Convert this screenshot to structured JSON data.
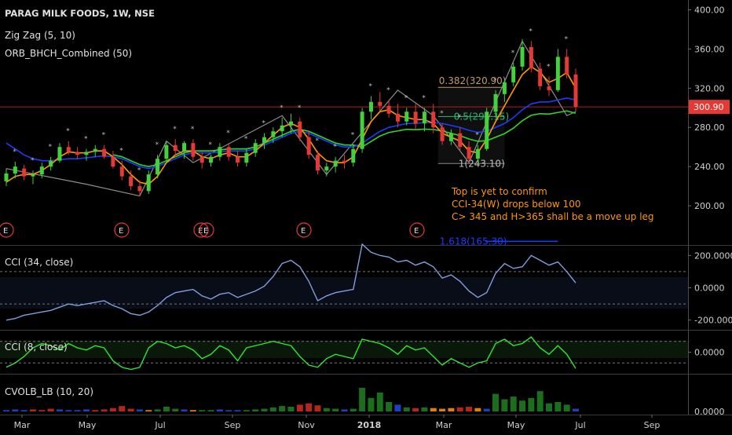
{
  "chart_data": [
    {
      "type": "candlestick",
      "title": "PARAG MILK FOODS, 1W, NSE",
      "overlays": [
        "Zig Zag (5, 10)",
        "ORB_BHCH_Combined (50)"
      ],
      "y_ticks": [
        "400.00",
        "360.00",
        "320.00",
        "280.00",
        "240.00",
        "200.00"
      ],
      "ylim": [
        160,
        410
      ],
      "last_price": "300.90",
      "fib_levels": [
        {
          "label": "0.382(320.90)",
          "value": 320.9
        },
        {
          "label": "0.5(291.15)",
          "value": 291.15
        },
        {
          "label": "1(243.10)",
          "value": 243.1
        },
        {
          "label": "1.618(165.30)",
          "value": 165.3
        }
      ],
      "annotation": [
        "Top is yet to confirm",
        "CCI-34(W) drops below 100",
        "C> 345 and H>365 shall be a move up leg"
      ],
      "candles": [
        [
          225,
          238,
          220,
          233
        ],
        [
          233,
          245,
          228,
          240
        ],
        [
          238,
          242,
          226,
          230
        ],
        [
          230,
          236,
          222,
          232
        ],
        [
          232,
          244,
          228,
          240
        ],
        [
          240,
          250,
          236,
          246
        ],
        [
          246,
          264,
          244,
          260
        ],
        [
          260,
          266,
          252,
          255
        ],
        [
          255,
          260,
          248,
          252
        ],
        [
          252,
          258,
          246,
          255
        ],
        [
          255,
          262,
          250,
          258
        ],
        [
          258,
          262,
          248,
          250
        ],
        [
          250,
          256,
          238,
          240
        ],
        [
          240,
          246,
          226,
          230
        ],
        [
          230,
          236,
          216,
          220
        ],
        [
          220,
          226,
          210,
          215
        ],
        [
          215,
          236,
          212,
          232
        ],
        [
          232,
          252,
          228,
          248
        ],
        [
          248,
          266,
          244,
          262
        ],
        [
          262,
          268,
          250,
          256
        ],
        [
          256,
          266,
          248,
          264
        ],
        [
          264,
          268,
          246,
          250
        ],
        [
          250,
          255,
          238,
          244
        ],
        [
          244,
          252,
          240,
          250
        ],
        [
          250,
          264,
          246,
          260
        ],
        [
          260,
          264,
          246,
          250
        ],
        [
          250,
          256,
          240,
          244
        ],
        [
          244,
          258,
          240,
          254
        ],
        [
          254,
          268,
          250,
          264
        ],
        [
          264,
          274,
          258,
          270
        ],
        [
          270,
          280,
          264,
          276
        ],
        [
          276,
          290,
          270,
          282
        ],
        [
          282,
          294,
          274,
          286
        ],
        [
          286,
          290,
          266,
          270
        ],
        [
          270,
          276,
          248,
          252
        ],
        [
          252,
          256,
          232,
          236
        ],
        [
          236,
          244,
          230,
          240
        ],
        [
          240,
          250,
          234,
          246
        ],
        [
          246,
          252,
          238,
          244
        ],
        [
          244,
          262,
          240,
          258
        ],
        [
          258,
          300,
          254,
          296
        ],
        [
          296,
          312,
          288,
          306
        ],
        [
          306,
          316,
          296,
          302
        ],
        [
          302,
          308,
          290,
          294
        ],
        [
          294,
          304,
          280,
          286
        ],
        [
          286,
          300,
          282,
          296
        ],
        [
          296,
          304,
          278,
          284
        ],
        [
          284,
          300,
          276,
          296
        ],
        [
          296,
          304,
          274,
          280
        ],
        [
          280,
          284,
          262,
          266
        ],
        [
          266,
          278,
          262,
          274
        ],
        [
          274,
          280,
          256,
          260
        ],
        [
          260,
          266,
          244,
          248
        ],
        [
          248,
          262,
          244,
          258
        ],
        [
          258,
          300,
          256,
          296
        ],
        [
          296,
          318,
          290,
          314
        ],
        [
          314,
          330,
          306,
          326
        ],
        [
          326,
          346,
          322,
          342
        ],
        [
          342,
          370,
          338,
          362
        ],
        [
          362,
          368,
          336,
          340
        ],
        [
          340,
          346,
          318,
          322
        ],
        [
          322,
          332,
          312,
          318
        ],
        [
          318,
          360,
          316,
          352
        ],
        [
          352,
          360,
          330,
          334
        ],
        [
          334,
          340,
          296,
          301
        ]
      ],
      "ma_fast": [
        224,
        230,
        232,
        232,
        236,
        242,
        250,
        255,
        254,
        254,
        256,
        256,
        250,
        242,
        232,
        224,
        222,
        230,
        244,
        252,
        256,
        256,
        250,
        248,
        252,
        254,
        250,
        250,
        256,
        264,
        272,
        280,
        284,
        280,
        268,
        254,
        246,
        244,
        244,
        250,
        268,
        286,
        296,
        298,
        292,
        290,
        288,
        288,
        284,
        274,
        270,
        266,
        256,
        254,
        268,
        286,
        302,
        318,
        334,
        342,
        336,
        326,
        330,
        336,
        320
      ],
      "ma_mid": [
        264,
        258,
        252,
        248,
        246,
        246,
        247,
        248,
        248,
        249,
        250,
        251,
        250,
        248,
        244,
        240,
        238,
        240,
        244,
        248,
        252,
        254,
        254,
        254,
        255,
        256,
        256,
        256,
        258,
        262,
        266,
        270,
        274,
        276,
        274,
        270,
        266,
        262,
        260,
        260,
        264,
        270,
        276,
        280,
        282,
        284,
        284,
        285,
        285,
        284,
        282,
        280,
        277,
        275,
        276,
        280,
        284,
        290,
        298,
        304,
        306,
        306,
        308,
        310,
        308
      ],
      "ma_slow": [
        null,
        null,
        null,
        null,
        null,
        null,
        null,
        null,
        null,
        null,
        null,
        null,
        null,
        null,
        null,
        null,
        null,
        null,
        null,
        null,
        null,
        null,
        null,
        null,
        null,
        null,
        null,
        null,
        null,
        null,
        null,
        null,
        null,
        null,
        null,
        null,
        null,
        null,
        null,
        null,
        null,
        null,
        null,
        null,
        null,
        null,
        null,
        null,
        null,
        null,
        null,
        null,
        null,
        null,
        null,
        null,
        null,
        null,
        null,
        null,
        null,
        null,
        null,
        null,
        null
      ]
    },
    {
      "type": "line",
      "title": "CCI (34, close)",
      "y_ticks": [
        "200.0000",
        "0.0000",
        "-200.0000"
      ],
      "ylim": [
        -260,
        260
      ],
      "bands": [
        100,
        -100
      ],
      "values": [
        -200,
        -190,
        -170,
        -160,
        -150,
        -140,
        -120,
        -100,
        -110,
        -100,
        -90,
        -80,
        -110,
        -130,
        -160,
        -170,
        -150,
        -110,
        -60,
        -30,
        -20,
        -10,
        -50,
        -70,
        -40,
        -30,
        -60,
        -40,
        -20,
        10,
        70,
        150,
        170,
        130,
        40,
        -80,
        -50,
        -30,
        -20,
        -10,
        270,
        220,
        200,
        190,
        160,
        170,
        140,
        160,
        130,
        60,
        80,
        40,
        -20,
        -60,
        -30,
        90,
        150,
        120,
        130,
        200,
        170,
        140,
        160,
        100,
        30
      ]
    },
    {
      "type": "line",
      "title": "CCI (8, close)",
      "y_ticks": [
        "0.0000"
      ],
      "ylim": [
        -200,
        200
      ],
      "bands": [
        100,
        -100
      ],
      "values": [
        -140,
        -100,
        -40,
        40,
        80,
        60,
        20,
        80,
        40,
        20,
        60,
        40,
        -80,
        -140,
        -160,
        -140,
        40,
        100,
        80,
        40,
        60,
        20,
        -60,
        -20,
        60,
        20,
        -80,
        40,
        60,
        80,
        100,
        80,
        60,
        -40,
        -120,
        -140,
        -60,
        -20,
        -40,
        -60,
        120,
        100,
        80,
        40,
        -20,
        60,
        20,
        40,
        -40,
        -120,
        -60,
        -100,
        -140,
        -100,
        -80,
        80,
        120,
        60,
        80,
        140,
        40,
        -20,
        60,
        -20,
        -150
      ]
    },
    {
      "type": "bar",
      "title": "CVOLB_LB (10, 20)",
      "y_ticks": [
        "0.0000"
      ],
      "ylim": [
        0,
        50
      ],
      "values": [
        2,
        3,
        2,
        3,
        2,
        4,
        3,
        2,
        2,
        3,
        2,
        3,
        5,
        8,
        4,
        3,
        2,
        3,
        7,
        4,
        3,
        2,
        2,
        2,
        3,
        2,
        2,
        2,
        3,
        4,
        6,
        8,
        7,
        10,
        12,
        9,
        5,
        4,
        3,
        4,
        35,
        20,
        28,
        14,
        10,
        6,
        5,
        6,
        5,
        4,
        5,
        6,
        7,
        5,
        4,
        26,
        18,
        22,
        16,
        20,
        30,
        12,
        14,
        10,
        4
      ],
      "colors": [
        "#1e3fbf",
        "#1e3fbf",
        "#1e3fbf",
        "#b3261e",
        "#b3261e",
        "#b3261e",
        "#1e3fbf",
        "#1e3fbf",
        "#1e3fbf",
        "#1e3fbf",
        "#b3261e",
        "#b3261e",
        "#b3261e",
        "#b3261e",
        "#b3261e",
        "#1e3fbf",
        "#e07b1a",
        "#1b6e1b",
        "#1b6e1b",
        "#1b6e1b",
        "#1e3fbf",
        "#e07b1a",
        "#1b6e1b",
        "#1b6e1b",
        "#1e3fbf",
        "#1e3fbf",
        "#1e3fbf",
        "#1b6e1b",
        "#1b6e1b",
        "#1b6e1b",
        "#1b6e1b",
        "#1b6e1b",
        "#1b6e1b",
        "#b3261e",
        "#b3261e",
        "#b3261e",
        "#1b6e1b",
        "#1b6e1b",
        "#1e3fbf",
        "#1b6e1b",
        "#1b6e1b",
        "#1b6e1b",
        "#1b6e1b",
        "#1b6e1b",
        "#1e3fbf",
        "#1b6e1b",
        "#b3261e",
        "#1b6e1b",
        "#e07b1a",
        "#e07b1a",
        "#e07b1a",
        "#b3261e",
        "#b3261e",
        "#e07b1a",
        "#1e3fbf",
        "#1b6e1b",
        "#1b6e1b",
        "#1b6e1b",
        "#1b6e1b",
        "#1b6e1b",
        "#1b6e1b",
        "#1b6e1b",
        "#1b6e1b",
        "#1b6e1b",
        "#1e3fbf"
      ]
    }
  ],
  "x_axis": {
    "labels": [
      "Mar",
      "May",
      "Jul",
      "Sep",
      "Nov",
      "2018",
      "Mar",
      "May",
      "Jul",
      "Sep"
    ]
  },
  "colors": {
    "up": "#43d13d",
    "down": "#e53935",
    "ma_fast": "#ff9800",
    "ma_mid": "#1a3cff",
    "ma_slow": "#2dd82d",
    "cci34": "#7f9fe0",
    "cci8": "#2ee62e",
    "price_line": "#b71c1c",
    "fib_label": "#c49a6c",
    "fib_mid_label": "#2bb673",
    "event_marker": "#e53935"
  }
}
